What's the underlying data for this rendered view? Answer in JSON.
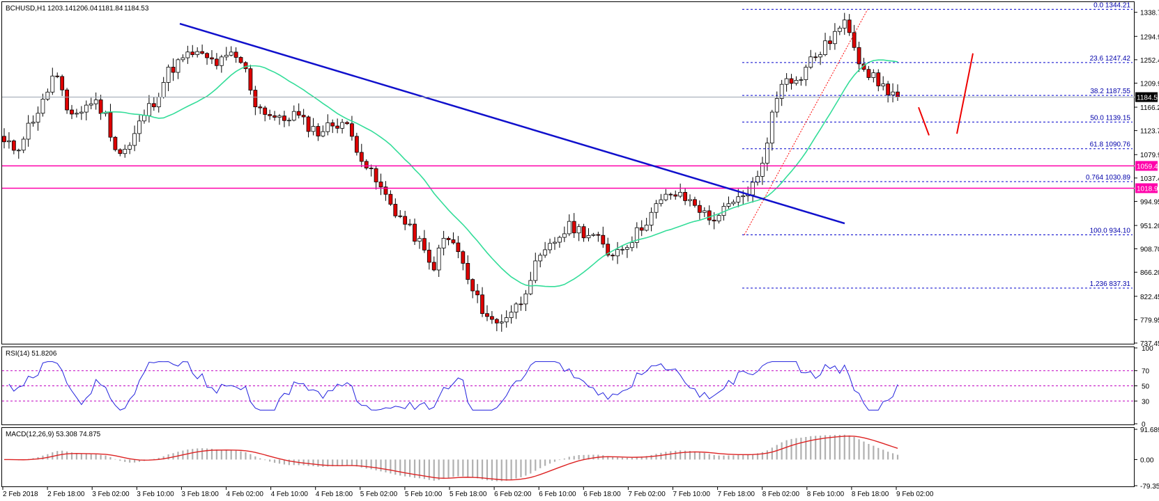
{
  "chart_data": [
    {
      "type": "candlestick",
      "title": "BCHUSD,H1",
      "ohlc_header": [
        "1203.14",
        "1206.04",
        "1181.84",
        "1184.53"
      ],
      "last_price": "1184.53",
      "ylim": [
        737.45,
        1356
      ],
      "y_ticks": [
        "1338.70",
        "1294.95",
        "1252.45",
        "1209.95",
        "1166.20",
        "1123.70",
        "1079.95",
        "1037.45",
        "994.95",
        "951.20",
        "908.70",
        "866.20",
        "822.45",
        "779.95",
        "737.45"
      ],
      "x_ticks": [
        "2 Feb 2018",
        "2 Feb 18:00",
        "3 Feb 02:00",
        "3 Feb 10:00",
        "3 Feb 18:00",
        "4 Feb 02:00",
        "4 Feb 10:00",
        "4 Feb 18:00",
        "5 Feb 02:00",
        "5 Feb 10:00",
        "5 Feb 18:00",
        "6 Feb 02:00",
        "6 Feb 10:00",
        "6 Feb 18:00",
        "7 Feb 02:00",
        "7 Feb 10:00",
        "7 Feb 18:00",
        "8 Feb 02:00",
        "8 Feb 10:00",
        "8 Feb 18:00",
        "9 Feb 02:00"
      ],
      "close_path": [
        1100,
        1090,
        1135,
        1170,
        1230,
        1160,
        1155,
        1180,
        1155,
        1080,
        1095,
        1150,
        1180,
        1230,
        1250,
        1265,
        1255,
        1245,
        1260,
        1245,
        1170,
        1155,
        1140,
        1155,
        1135,
        1120,
        1135,
        1140,
        1095,
        1050,
        1015,
        980,
        950,
        920,
        870,
        930,
        910,
        840,
        800,
        770,
        790,
        810,
        870,
        900,
        930,
        950,
        940,
        930,
        900,
        910,
        930,
        960,
        990,
        1010,
        1000,
        990,
        960,
        975,
        990,
        1010,
        1040,
        1150,
        1230,
        1210,
        1250,
        1270,
        1300,
        1320,
        1250,
        1220,
        1200,
        1187
      ],
      "support_levels": [
        "1059.48",
        "1018.96"
      ],
      "fibonacci": [
        {
          "label": "0.0",
          "value": "1344.21"
        },
        {
          "label": "23.6",
          "value": "1247.42"
        },
        {
          "label": "38.2",
          "value": "1187.55"
        },
        {
          "label": "50.0",
          "value": "1139.15"
        },
        {
          "label": "61.8",
          "value": "1090.76"
        },
        {
          "label": "0.764",
          "value": "1030.89"
        },
        {
          "label": "100.0",
          "value": "934.10"
        },
        {
          "label": "1.236",
          "value": "837.31"
        }
      ],
      "trend_line": "bearish trend line (blue)",
      "moving_average": "green",
      "colors": {
        "bull": "#ffffff",
        "bear": "#dd0000",
        "support": "#ff00aa",
        "fib": "#0000cc",
        "trend": "#1010cc",
        "ma": "#33dd99",
        "red_arrow": "#ee0000"
      }
    },
    {
      "type": "line",
      "title": "RSI(14) 51.8206",
      "ylim": [
        0,
        100
      ],
      "y_ticks": [
        "100",
        "70",
        "50",
        "30",
        "0"
      ],
      "levels": [
        70,
        50,
        30
      ],
      "last_value": 51.8206
    },
    {
      "type": "bar",
      "title": "MACD(12,26,9) 53.308 74.875",
      "ylim": [
        -79.359,
        91.689
      ],
      "y_ticks": [
        "91.689",
        "0.00",
        "-79.359"
      ],
      "last_main": 53.308,
      "last_signal": 74.875
    }
  ]
}
